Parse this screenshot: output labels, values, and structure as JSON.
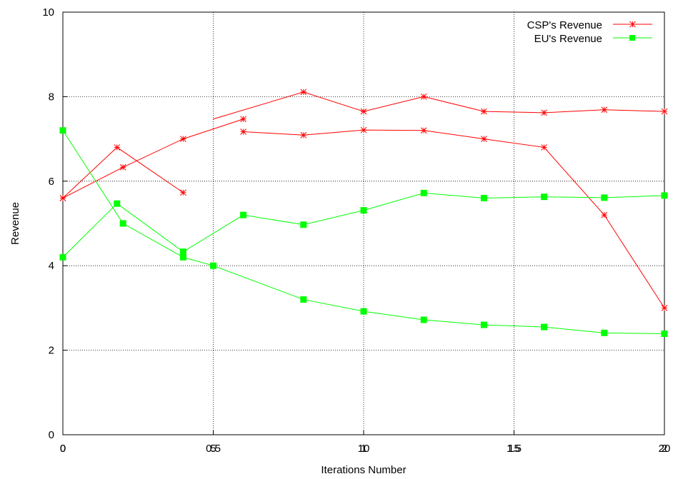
{
  "chart_data": {
    "type": "line",
    "xlabel": "Iterations Number",
    "ylabel": "Revenue",
    "xlim": [
      0,
      20
    ],
    "ylim": [
      0,
      10
    ],
    "grid": true,
    "legend_position": "top-right",
    "y_ticks": [
      "0",
      "2",
      "4",
      "6",
      "8",
      "10"
    ],
    "x_ticks_a": [
      {
        "x": 0,
        "label": "0"
      },
      {
        "x": 5,
        "label": "5"
      },
      {
        "x": 10,
        "label": "10"
      },
      {
        "x": 15,
        "label": "15"
      },
      {
        "x": 20,
        "label": "20"
      }
    ],
    "x_ticks_b": [
      {
        "x": 0,
        "label": "0"
      },
      {
        "x": 5,
        "label": "0.5"
      },
      {
        "x": 10,
        "label": "1"
      },
      {
        "x": 15,
        "label": "1.5"
      },
      {
        "x": 20,
        "label": "2"
      }
    ],
    "series": [
      {
        "name": "CSP's Revenue",
        "color": "#ff0000",
        "marker": "star",
        "lines": [
          {
            "x": [
              0,
              2,
              4,
              6,
              8,
              10,
              12,
              14,
              16,
              18,
              20
            ],
            "y": [
              5.6,
              6.33,
              7.0,
              7.47,
              null,
              null,
              8.0,
              7.65,
              7.62,
              7.69,
              7.65
            ]
          },
          {
            "x": [
              0,
              1.8,
              4,
              5,
              6,
              8,
              10,
              12,
              14,
              16,
              18,
              20
            ],
            "y": [
              5.6,
              6.8,
              5.73,
              null,
              7.17,
              7.09,
              7.21,
              7.2,
              7.0,
              6.8,
              5.2,
              3.0
            ]
          }
        ]
      },
      {
        "name": "EU's Revenue",
        "color": "#00ff00",
        "marker": "square",
        "lines": [
          {
            "x": [
              0,
              1.8,
              4,
              6,
              8,
              10,
              12,
              14,
              16,
              18,
              20
            ],
            "y": [
              4.2,
              5.47,
              4.33,
              5.2,
              4.97,
              5.31,
              5.72,
              5.6,
              5.63,
              5.61,
              5.66
            ]
          },
          {
            "x": [
              0,
              2,
              4,
              5,
              8,
              10,
              12,
              14,
              16,
              18,
              20
            ],
            "y": [
              7.2,
              5.0,
              4.2,
              4.0,
              3.2,
              2.92,
              2.72,
              2.6,
              2.55,
              2.41,
              2.39
            ]
          }
        ]
      }
    ],
    "extra_points": {
      "csp": [
        {
          "x": 8,
          "y": 8.11
        },
        {
          "x": 10,
          "y": 7.65
        }
      ]
    }
  }
}
